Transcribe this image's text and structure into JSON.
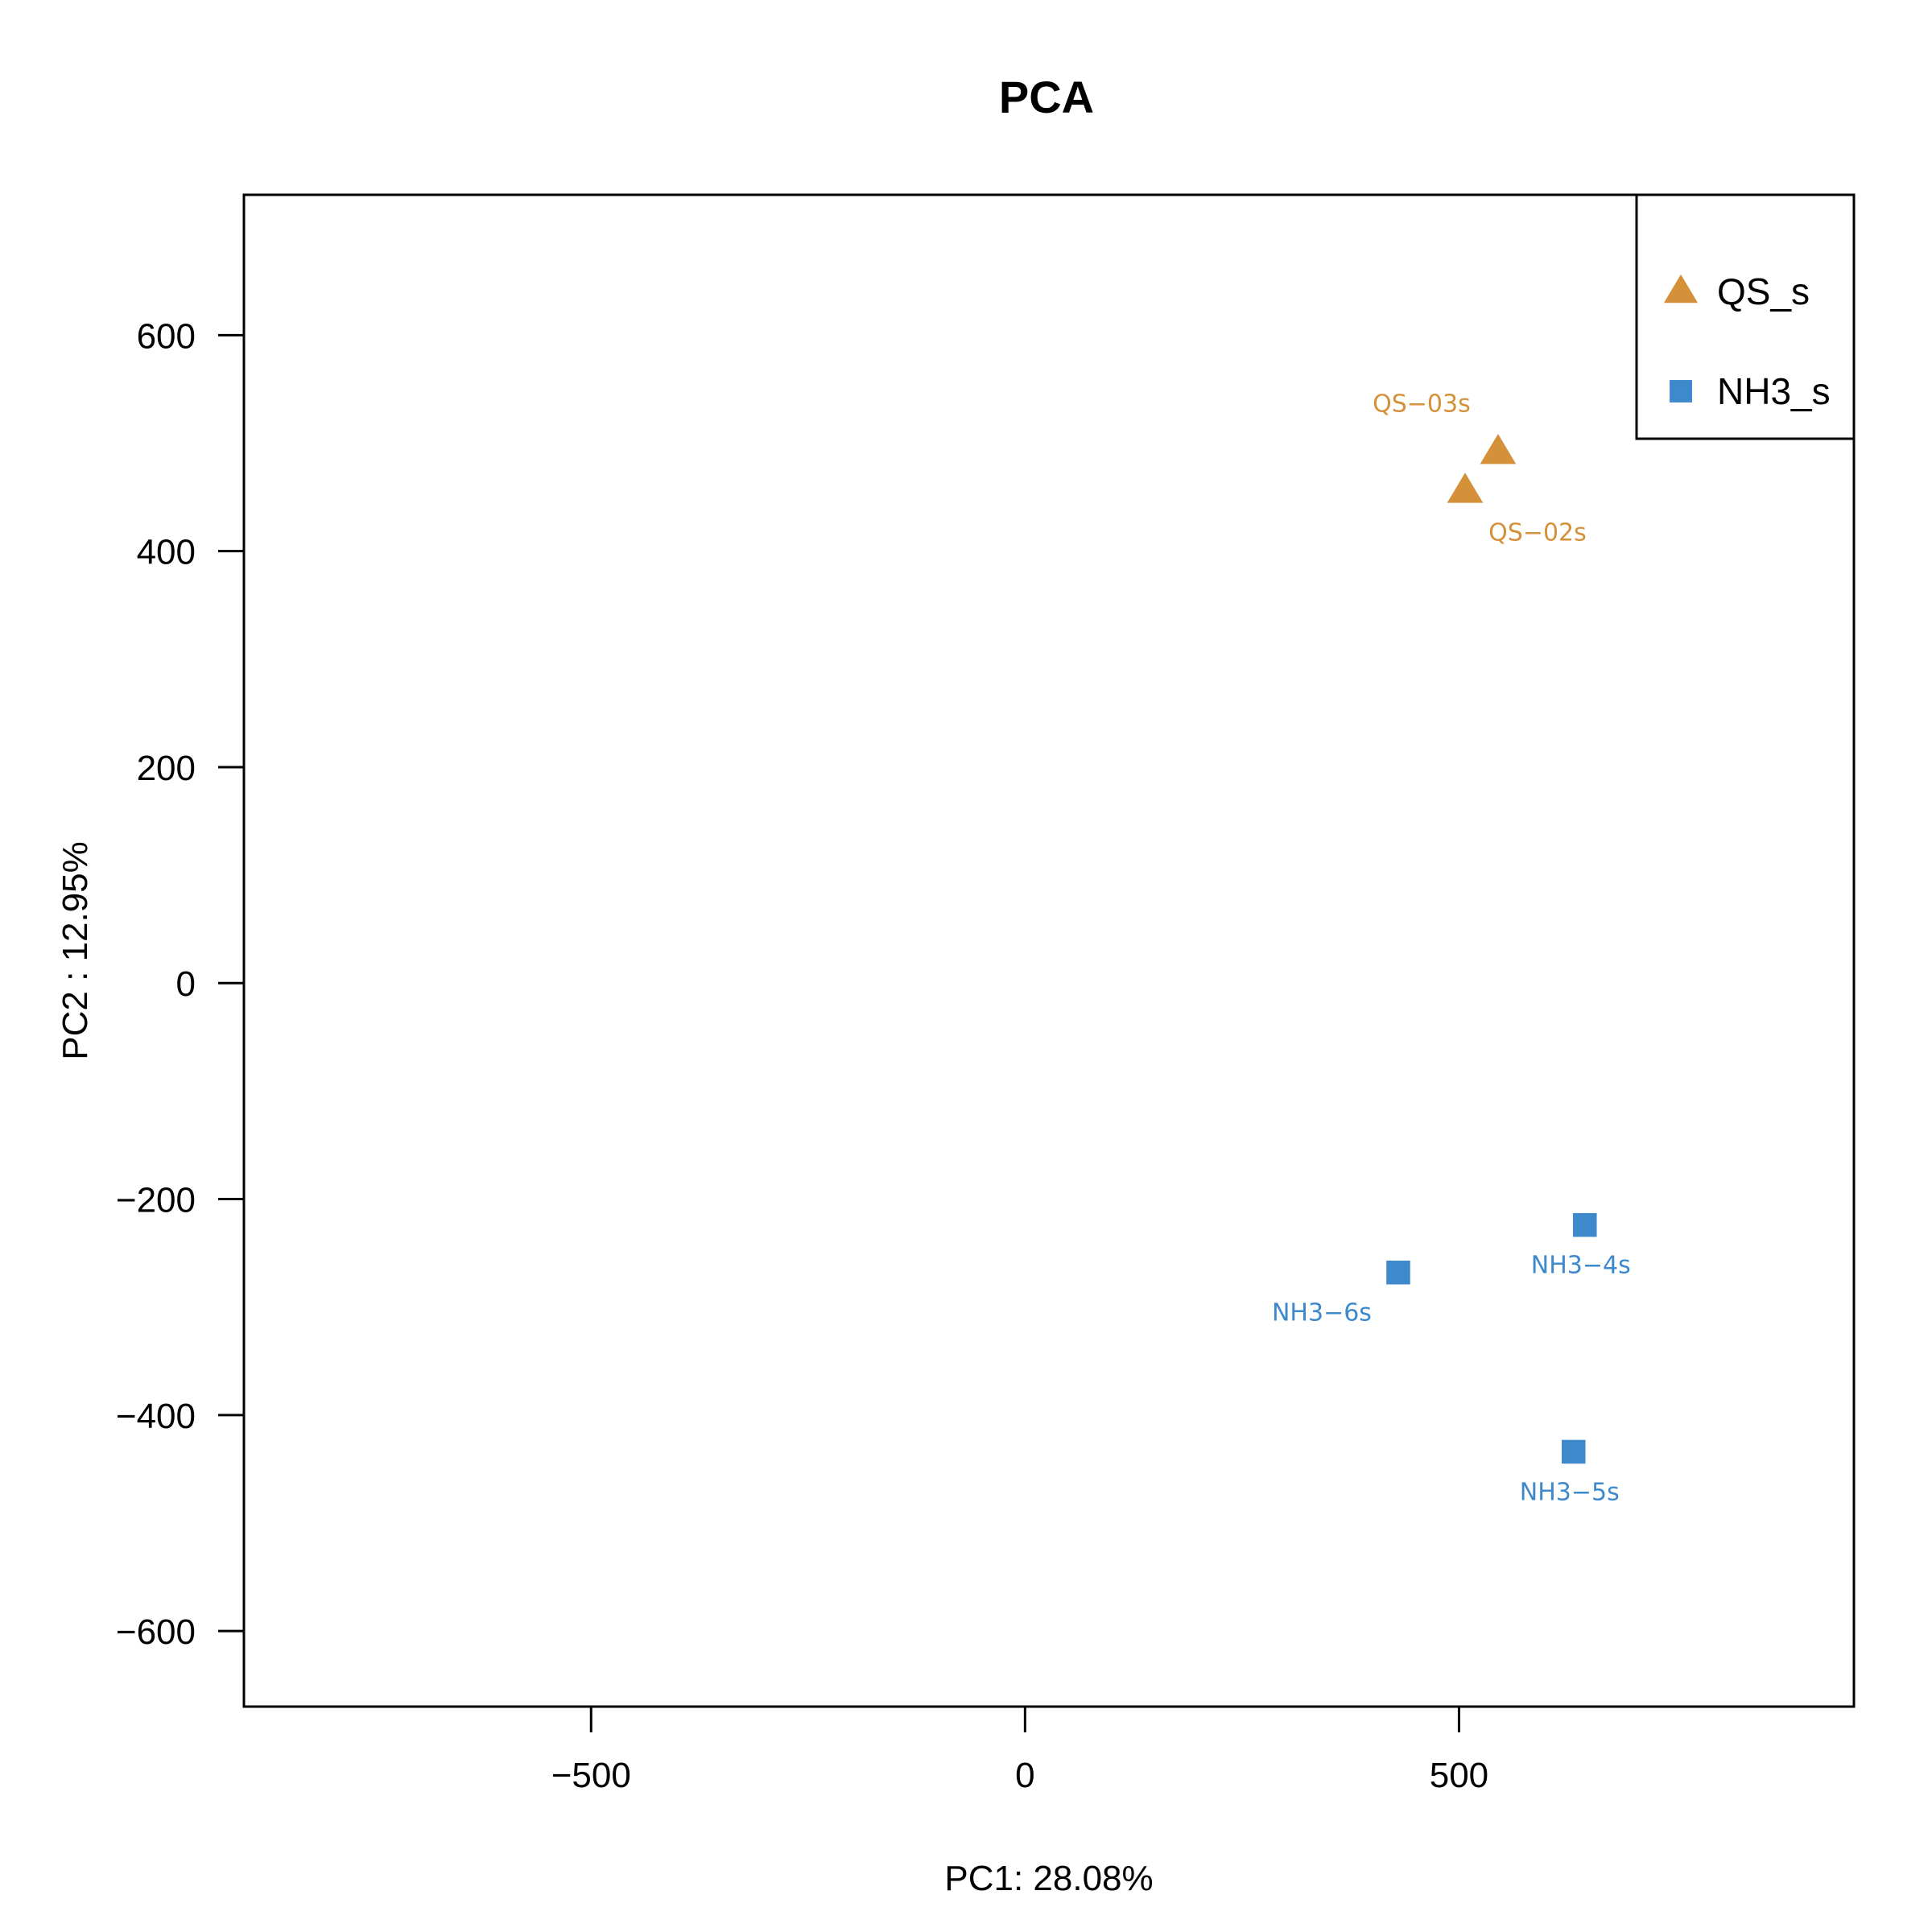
{
  "chart_data": {
    "type": "scatter",
    "title": "PCA",
    "xlabel": "PC1: 28.08%",
    "ylabel": "PC2 :  12.95%",
    "xlim": [
      -900,
      955
    ],
    "ylim": [
      -670,
      730
    ],
    "xticks": [
      -500,
      0,
      500
    ],
    "xtick_labels": [
      "−500",
      "0",
      "500"
    ],
    "yticks": [
      -600,
      -400,
      -200,
      0,
      200,
      400,
      600
    ],
    "ytick_labels": [
      "−600",
      "−400",
      "−200",
      "0",
      "200",
      "400",
      "600"
    ],
    "grid": false,
    "legend_position": "top-right",
    "series": [
      {
        "name": "QS_s",
        "marker": "triangle",
        "color": "#D4913A",
        "points": [
          {
            "label": "QS−03s",
            "x": 545,
            "y": 492
          },
          {
            "label": "QS−02s",
            "x": 507,
            "y": 456
          }
        ]
      },
      {
        "name": "NH3_s",
        "marker": "square",
        "color": "#3E88CC",
        "points": [
          {
            "label": "NH3−4s",
            "x": 645,
            "y": -224
          },
          {
            "label": "NH3−6s",
            "x": 430,
            "y": -268
          },
          {
            "label": "NH3−5s",
            "x": 632,
            "y": -434
          }
        ]
      }
    ]
  }
}
